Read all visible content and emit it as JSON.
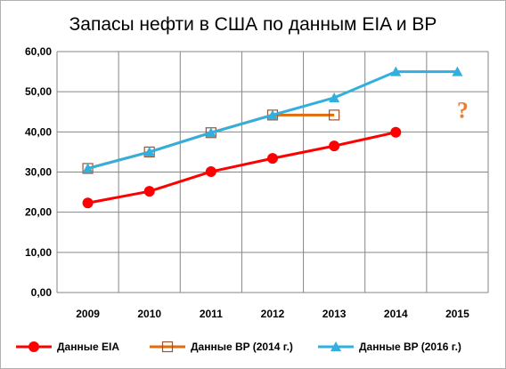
{
  "chart_data": {
    "type": "line",
    "title": "Запасы нефти в США по данным EIA и BP",
    "categories": [
      "2009",
      "2010",
      "2011",
      "2012",
      "2013",
      "2014",
      "2015"
    ],
    "yticks": [
      "0,00",
      "10,00",
      "20,00",
      "30,00",
      "40,00",
      "50,00",
      "60,00"
    ],
    "ylim": [
      0,
      60
    ],
    "xlabel": "",
    "ylabel": "",
    "grid": true,
    "legend_position": "bottom",
    "series": [
      {
        "name": "Данные EIA",
        "color": "#ff0000",
        "marker": "circle",
        "values": [
          22.3,
          25.2,
          30.1,
          33.4,
          36.5,
          39.9,
          null
        ]
      },
      {
        "name": "Данные BP (2014 г.)",
        "color": "#e36c09",
        "marker": "square-open",
        "values": [
          30.9,
          35.0,
          39.8,
          44.2,
          44.2,
          null,
          null
        ]
      },
      {
        "name": "Данные BP (2016 г.)",
        "color": "#31b0e0",
        "marker": "triangle",
        "values": [
          30.9,
          35.0,
          39.8,
          44.2,
          48.5,
          55.0,
          55.0
        ]
      }
    ],
    "annotations": [
      {
        "text": "?",
        "category": "2015",
        "y": 43.5,
        "color": "#ed7d31"
      }
    ]
  }
}
